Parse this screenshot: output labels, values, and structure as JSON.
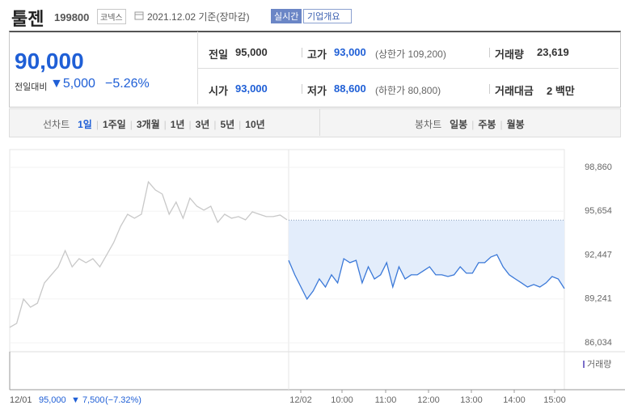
{
  "header": {
    "name": "툴젠",
    "code": "199800",
    "market": "코넥스",
    "date": "2021.12.02 기준(장마감)",
    "realtime": "실시간",
    "company": "기업개요"
  },
  "quote": {
    "price": "90,000",
    "change_label": "전일대비",
    "change": "▼5,000",
    "change_pct": "−5.26%",
    "stats": [
      {
        "label": "전일",
        "value": "95,000"
      },
      {
        "label": "고가",
        "value": "93,000",
        "note": "(상한가 109,200)"
      },
      {
        "label": "거래량",
        "value": "23,619"
      },
      {
        "label": "시가",
        "value": "93,000"
      },
      {
        "label": "저가",
        "value": "88,600",
        "note": "(하한가 80,800)"
      },
      {
        "label": "거래대금",
        "value": "2 백만"
      }
    ]
  },
  "tabs": {
    "line_label": "선차트",
    "line": [
      "1일",
      "1주일",
      "3개월",
      "1년",
      "3년",
      "5년",
      "10년"
    ],
    "candle_label": "봉차트",
    "candle": [
      "일봉",
      "주봉",
      "월봉"
    ]
  },
  "chart_data": {
    "type": "line",
    "ylim": [
      85380,
      100160
    ],
    "yticks": [
      {
        "value": 98860,
        "label": "98,860"
      },
      {
        "value": 95654,
        "label": "95,654"
      },
      {
        "value": 92447,
        "label": "92,447"
      },
      {
        "value": 89241,
        "label": "89,241"
      },
      {
        "value": 86034,
        "label": "86,034"
      }
    ],
    "reference": 95000,
    "series": [
      {
        "color": "#c8c8c8",
        "values": [
          87160,
          87450,
          89230,
          88640,
          88930,
          90410,
          91000,
          91590,
          92770,
          91590,
          92180,
          91890,
          92180,
          91590,
          92480,
          93360,
          94550,
          95430,
          95140,
          95430,
          97800,
          97210,
          96910,
          95430,
          96320,
          95140,
          96610,
          96020,
          95730,
          96020,
          94840,
          95430,
          95140,
          95260,
          95020,
          95610,
          95430,
          95260,
          95260,
          95370,
          95020
        ]
      },
      {
        "color": "#3a78d8",
        "values": [
          92060,
          91000,
          90110,
          89230,
          89820,
          90700,
          90110,
          91000,
          90410,
          92180,
          91890,
          92060,
          90410,
          91590,
          90700,
          91000,
          91890,
          90110,
          91590,
          90700,
          91000,
          91000,
          91300,
          91590,
          91000,
          91000,
          90880,
          91000,
          91590,
          91120,
          91120,
          91890,
          91890,
          92300,
          92480,
          91590,
          91000,
          90700,
          90410,
          90110,
          90290,
          90110,
          90410,
          90880,
          90700,
          90000
        ]
      }
    ],
    "x_labels": [
      "12/01",
      "12/02",
      "10:00",
      "11:00",
      "12:00",
      "13:00",
      "14:00",
      "15:00"
    ],
    "volume_legend": "거래량"
  },
  "footer": {
    "date": "12/01",
    "price": "95,000",
    "change": "▼ 7,500",
    "pct": "(−7.32%)"
  }
}
